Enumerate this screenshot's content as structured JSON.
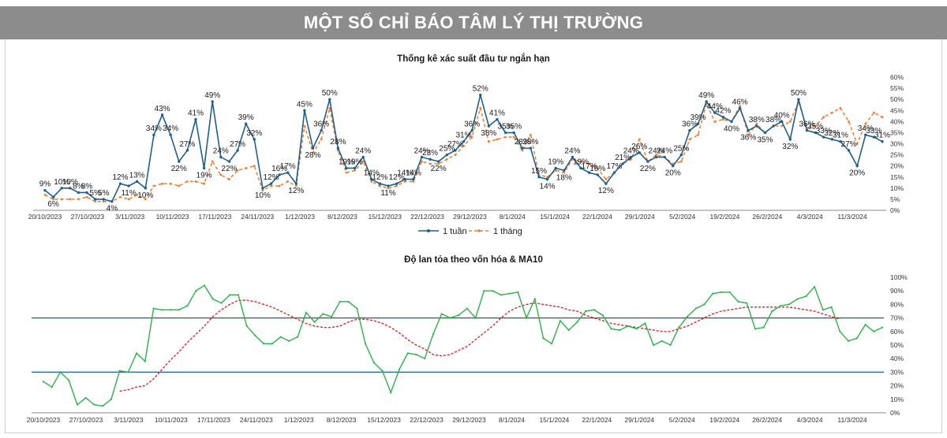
{
  "header": {
    "title": "MỘT SỐ CHỈ BÁO TÂM LÝ THỊ TRƯỜNG"
  },
  "colors": {
    "banner": "#8c8c8c",
    "week": "#1f5f8b",
    "month": "#ed7d31",
    "breadth": "#2eb04b",
    "ma10": "#d9262a",
    "refline": "#1f5f8b"
  },
  "chart_data": [
    {
      "type": "line",
      "title": "Thống kê xác suất đầu tư ngắn hạn",
      "xlabel": "",
      "ylabel": "",
      "ylim": [
        0,
        60
      ],
      "ytick_labels": [
        "0%",
        "5%",
        "10%",
        "15%",
        "20%",
        "25%",
        "30%",
        "35%",
        "40%",
        "45%",
        "50%",
        "55%",
        "60%"
      ],
      "x_tick_labels": [
        "20/10/2023",
        "27/10/2023",
        "3/11/2023",
        "10/11/2023",
        "17/11/2023",
        "24/11/2023",
        "1/12/2023",
        "8/12/2023",
        "15/12/2023",
        "22/12/2023",
        "29/12/2023",
        "8/1/2024",
        "15/1/2024",
        "22/1/2024",
        "29/1/2024",
        "5/2/2024",
        "19/2/2024",
        "26/2/2024",
        "4/3/2024",
        "11/3/2024"
      ],
      "legend": "bottom",
      "series": [
        {
          "name": "1 tuần",
          "values": [
            9,
            6,
            10,
            10,
            8,
            8,
            5,
            5,
            4,
            12,
            11,
            13,
            10,
            34,
            43,
            34,
            22,
            27,
            41,
            19,
            49,
            24,
            22,
            27,
            39,
            32,
            10,
            12,
            16,
            17,
            12,
            45,
            28,
            36,
            50,
            28,
            19,
            19,
            24,
            14,
            12,
            11,
            12,
            14,
            14,
            24,
            23,
            22,
            25,
            27,
            31,
            36,
            52,
            38,
            41,
            35,
            35,
            28,
            28,
            15,
            14,
            19,
            18,
            24,
            19,
            17,
            16,
            12,
            17,
            21,
            24,
            26,
            22,
            24,
            24,
            20,
            25,
            36,
            39,
            49,
            44,
            42,
            40,
            46,
            36,
            38,
            35,
            38,
            40,
            32,
            50,
            36,
            35,
            33,
            32,
            31,
            27,
            20,
            34,
            33,
            31
          ],
          "labels": [
            "9%",
            "6%",
            "10%",
            "10%",
            "8%",
            "8%",
            "5%",
            "5%",
            "4%",
            "12%",
            "11%",
            "13%",
            "10%",
            "34%",
            "43%",
            "34%",
            "22%",
            "27%",
            "41%",
            "19%",
            "49%",
            "24%",
            "22%",
            "27%",
            "39%",
            "32%",
            "10%",
            "12%",
            "16%",
            "17%",
            "12%",
            "45%",
            "28%",
            "36%",
            "50%",
            "28%",
            "19%",
            "19%",
            "24%",
            "14%",
            "12%",
            "11%",
            "12%",
            "14%",
            "14%",
            "24%",
            "23%",
            "22%",
            "25%",
            "27%",
            "31%",
            "36%",
            "52%",
            "38%",
            "41%",
            "35%",
            "35%",
            "28%",
            "28%",
            "15%",
            "14%",
            "19%",
            "18%",
            "24%",
            "19%",
            "17%",
            "16%",
            "12%",
            "17%",
            "21%",
            "24%",
            "26%",
            "22%",
            "24%",
            "24%",
            "20%",
            "25%",
            "36%",
            "39%",
            "49%",
            "44%",
            "42%",
            "40%",
            "46%",
            "36%",
            "38%",
            "35%",
            "38%",
            "40%",
            "32%",
            "50%",
            "36%",
            "35%",
            "33%",
            "32%",
            "31%",
            "27%",
            "20%",
            "34%",
            "33%",
            "31%"
          ]
        },
        {
          "name": "1 tháng",
          "values": [
            7,
            5,
            5,
            5,
            5,
            6,
            4,
            4,
            4,
            6,
            5,
            7,
            5,
            11,
            12,
            12,
            11,
            13,
            13,
            12,
            22,
            16,
            14,
            18,
            19,
            20,
            9,
            11,
            11,
            13,
            11,
            38,
            26,
            32,
            46,
            27,
            17,
            18,
            22,
            13,
            11,
            10,
            11,
            13,
            13,
            22,
            21,
            21,
            23,
            25,
            29,
            33,
            46,
            31,
            32,
            33,
            33,
            27,
            34,
            16,
            15,
            18,
            17,
            23,
            22,
            21,
            19,
            14,
            17,
            21,
            23,
            32,
            22,
            25,
            24,
            21,
            22,
            32,
            34,
            48,
            40,
            41,
            40,
            47,
            34,
            39,
            35,
            38,
            38,
            40,
            49,
            37,
            38,
            42,
            44,
            46,
            40,
            30,
            39,
            44,
            42
          ]
        }
      ]
    },
    {
      "type": "line",
      "title": "Độ lan tỏa theo vốn hóa & MA10",
      "xlabel": "",
      "ylabel": "",
      "ylim": [
        0,
        100
      ],
      "ytick_labels": [
        "0%",
        "10%",
        "20%",
        "30%",
        "40%",
        "50%",
        "60%",
        "70%",
        "80%",
        "90%",
        "100%"
      ],
      "x_tick_labels": [
        "20/10/2023",
        "27/10/2023",
        "3/11/2023",
        "10/11/2023",
        "17/11/2023",
        "24/11/2023",
        "1/12/2023",
        "8/12/2023",
        "15/12/2023",
        "22/12/2023",
        "29/12/2023",
        "8/1/2024",
        "15/1/2024",
        "22/1/2024",
        "29/1/2024",
        "5/2/2024",
        "19/2/2024",
        "26/2/2024",
        "4/3/2024",
        "11/3/2024"
      ],
      "reference_lines": [
        70,
        30
      ],
      "series": [
        {
          "name": "Độ lan tỏa",
          "values": [
            23,
            19,
            30,
            24,
            6,
            11,
            6,
            5,
            10,
            31,
            30,
            44,
            38,
            77,
            76,
            76,
            76,
            79,
            90,
            94,
            84,
            81,
            87,
            87,
            64,
            57,
            51,
            51,
            56,
            53,
            56,
            74,
            67,
            73,
            71,
            82,
            82,
            77,
            51,
            37,
            31,
            15,
            32,
            44,
            43,
            40,
            58,
            73,
            70,
            72,
            77,
            70,
            90,
            90,
            87,
            88,
            89,
            70,
            84,
            55,
            51,
            68,
            61,
            67,
            75,
            76,
            72,
            62,
            61,
            64,
            62,
            66,
            50,
            53,
            50,
            63,
            71,
            77,
            80,
            88,
            89,
            89,
            82,
            81,
            62,
            63,
            75,
            79,
            80,
            84,
            86,
            93,
            76,
            78,
            60,
            53,
            55,
            65,
            60,
            63
          ],
          "color": "#2eb04b"
        },
        {
          "name": "MA10",
          "start_index": 9,
          "values": [
            16,
            17,
            19,
            20,
            25,
            32,
            39,
            45,
            52,
            58,
            64,
            71,
            76,
            80,
            83,
            83,
            82,
            80,
            78,
            75,
            72,
            69,
            66,
            64,
            63,
            63,
            64,
            67,
            69,
            69,
            68,
            66,
            63,
            59,
            54,
            50,
            47,
            43,
            42,
            43,
            46,
            49,
            54,
            59,
            64,
            70,
            75,
            78,
            80,
            81,
            80,
            79,
            78,
            76,
            75,
            72,
            70,
            68,
            66,
            65,
            64,
            63,
            62,
            61,
            60,
            60,
            62,
            64,
            67,
            70,
            73,
            75,
            76,
            77,
            78,
            78,
            78,
            78,
            78,
            78,
            77,
            76,
            75,
            73,
            71,
            69
          ],
          "color": "#d9262a"
        }
      ]
    }
  ]
}
